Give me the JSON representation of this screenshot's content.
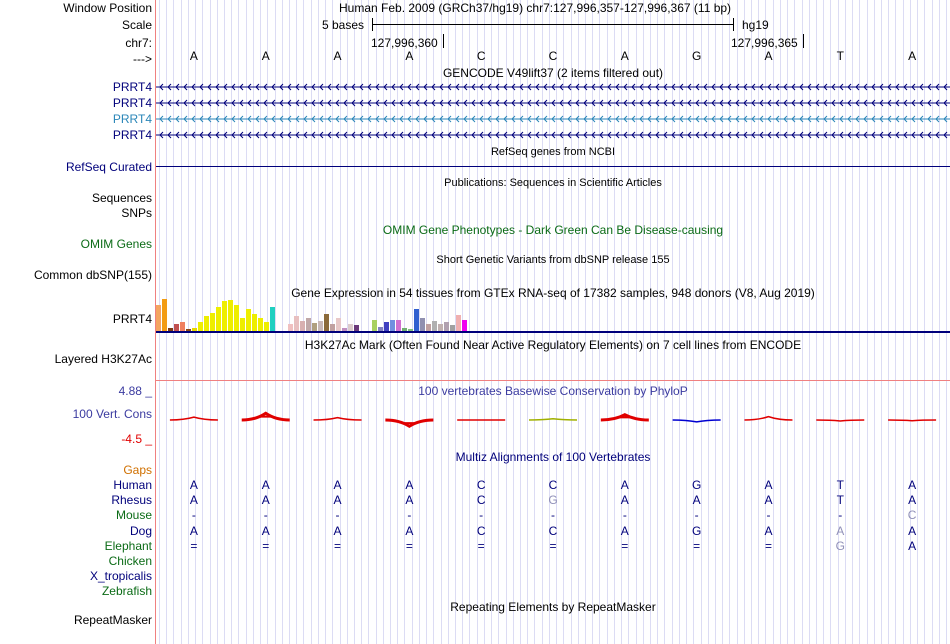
{
  "colors": {
    "label_navy": "#00007b",
    "label_gencode_light": "#2a86b8",
    "label_green": "#0b6b16",
    "label_orange": "#d07000",
    "label_blue": "#3b3ba0",
    "title_green": "#0b6b16",
    "title_blue": "#3b3ba0",
    "accent_red": "#e00000",
    "grid_line": "#dcdcf4",
    "divider": "#f08080"
  },
  "header": {
    "window_position_label": "Window Position",
    "window_position_value": "Human Feb. 2009 (GRCh37/hg19)   chr7:127,996,357-127,996,367 (11 bp)",
    "scale_label": "Scale",
    "scale_value": "5 bases",
    "assembly": "hg19",
    "chrom_label": "chr7:",
    "pos_left": "127,996,360",
    "pos_right": "127,996,365",
    "strand_label": "--->"
  },
  "sequence": [
    "A",
    "A",
    "A",
    "A",
    "C",
    "C",
    "A",
    "G",
    "A",
    "T",
    "A"
  ],
  "gencode": {
    "title": "GENCODE V49lift37 (2 items filtered out)",
    "genes": [
      {
        "label": "PRRT4",
        "color": "#00007b"
      },
      {
        "label": "PRRT4",
        "color": "#00007b"
      },
      {
        "label": "PRRT4",
        "color": "#2a86b8"
      },
      {
        "label": "PRRT4",
        "color": "#00007b"
      }
    ]
  },
  "refseq": {
    "title": "RefSeq genes from NCBI",
    "label": "RefSeq Curated"
  },
  "publications": {
    "title": "Publications: Sequences in Scientific Articles",
    "label_sequences": "Sequences",
    "label_snps": "SNPs"
  },
  "omim": {
    "title": "OMIM Gene Phenotypes - Dark Green Can Be Disease-causing",
    "label": "OMIM Genes"
  },
  "dbsnp": {
    "title": "Short Genetic Variants from dbSNP release 155",
    "label": "Common dbSNP(155)"
  },
  "gtex": {
    "title": "Gene Expression in 54 tissues from GTEx RNA-seq of 17382 samples, 948 donors (V8, Aug 2019)",
    "label": "PRRT4",
    "bars": [
      {
        "v": 0.8,
        "c": "#f4a460"
      },
      {
        "v": 0.97,
        "c": "#f39c12"
      },
      {
        "v": 0.08,
        "c": "#7b3a14"
      },
      {
        "v": 0.2,
        "c": "#c05050"
      },
      {
        "v": 0.27,
        "c": "#f08060"
      },
      {
        "v": 0.05,
        "c": "#8b4513"
      },
      {
        "v": 0.1,
        "c": "#e8d800"
      },
      {
        "v": 0.28,
        "c": "#eeee00"
      },
      {
        "v": 0.45,
        "c": "#eeee00"
      },
      {
        "v": 0.55,
        "c": "#eeee00"
      },
      {
        "v": 0.72,
        "c": "#eeee00"
      },
      {
        "v": 0.9,
        "c": "#eeee00"
      },
      {
        "v": 0.93,
        "c": "#eeee00"
      },
      {
        "v": 0.8,
        "c": "#eeee00"
      },
      {
        "v": 0.4,
        "c": "#eeee00"
      },
      {
        "v": 0.68,
        "c": "#eeee00"
      },
      {
        "v": 0.5,
        "c": "#eeee00"
      },
      {
        "v": 0.4,
        "c": "#eeee00"
      },
      {
        "v": 0.28,
        "c": "#eeee00"
      },
      {
        "v": 0.72,
        "c": "#20d0c0"
      },
      {
        "v": 0.0,
        "c": "#ffffff"
      },
      {
        "v": 0.0,
        "c": "#ffffff"
      },
      {
        "v": 0.22,
        "c": "#f0c0c0"
      },
      {
        "v": 0.45,
        "c": "#e8c0c0"
      },
      {
        "v": 0.3,
        "c": "#d8b0b0"
      },
      {
        "v": 0.38,
        "c": "#c0a8a8"
      },
      {
        "v": 0.25,
        "c": "#b0a080"
      },
      {
        "v": 0.3,
        "c": "#c8b8b8"
      },
      {
        "v": 0.52,
        "c": "#8b6a3a"
      },
      {
        "v": 0.22,
        "c": "#c0a0a0"
      },
      {
        "v": 0.4,
        "c": "#e8c8c8"
      },
      {
        "v": 0.1,
        "c": "#c090c0"
      },
      {
        "v": 0.22,
        "c": "#dccccc"
      },
      {
        "v": 0.18,
        "c": "#6a3a7a"
      },
      {
        "v": 0.0,
        "c": "#ffffff"
      },
      {
        "v": 0.0,
        "c": "#ffffff"
      },
      {
        "v": 0.32,
        "c": "#a8d060"
      },
      {
        "v": 0.12,
        "c": "#8080c0"
      },
      {
        "v": 0.28,
        "c": "#4040c0"
      },
      {
        "v": 0.32,
        "c": "#7090e0"
      },
      {
        "v": 0.32,
        "c": "#d070d0"
      },
      {
        "v": 0.1,
        "c": "#70b070"
      },
      {
        "v": 0.05,
        "c": "#80c080"
      },
      {
        "v": 0.68,
        "c": "#3060d0"
      },
      {
        "v": 0.4,
        "c": "#9090b0"
      },
      {
        "v": 0.22,
        "c": "#c0a0a0"
      },
      {
        "v": 0.3,
        "c": "#b0b0b0"
      },
      {
        "v": 0.22,
        "c": "#c0b0b0"
      },
      {
        "v": 0.28,
        "c": "#b0a0b0"
      },
      {
        "v": 0.18,
        "c": "#a0a0a0"
      },
      {
        "v": 0.48,
        "c": "#f0b0b0"
      },
      {
        "v": 0.32,
        "c": "#f000f0"
      },
      {
        "v": 0.0,
        "c": "#ffffff"
      },
      {
        "v": 0.0,
        "c": "#ffffff"
      }
    ]
  },
  "h3k27ac": {
    "title": "H3K27Ac Mark (Often Found Near Active Regulatory Elements) on 7 cell lines from ENCODE",
    "label": "Layered H3K27Ac"
  },
  "phylop": {
    "title": "100 vertebrates Basewise Conservation by PhyloP",
    "label": "100 Vert. Cons",
    "max_label": "4.88 _",
    "min_label": "-4.5 _",
    "values": [
      0.12,
      0.28,
      0.1,
      -0.26,
      0.0,
      0.05,
      0.22,
      -0.08,
      0.14,
      -0.04,
      -0.03
    ],
    "colors": [
      "#e00000",
      "#e00000",
      "#e00000",
      "#e00000",
      "#e00000",
      "#a0b000",
      "#e00000",
      "#0000d0",
      "#e00000",
      "#e00000",
      "#e00000"
    ]
  },
  "multiz": {
    "title": "Multiz Alignments of 100 Vertebrates",
    "gaps_label": "Gaps",
    "species": [
      {
        "name": "Human",
        "color": "#00007b",
        "bases": [
          "A",
          "A",
          "A",
          "A",
          "C",
          "C",
          "A",
          "G",
          "A",
          "T",
          "A"
        ]
      },
      {
        "name": "Rhesus",
        "color": "#00007b",
        "bases": [
          "A",
          "A",
          "A",
          "A",
          "C",
          "G",
          "A",
          "A",
          "A",
          "T",
          "A"
        ]
      },
      {
        "name": "Mouse",
        "color": "#0b6b16",
        "bases": [
          "-",
          "-",
          "-",
          "-",
          "-",
          "-",
          "-",
          "-",
          "-",
          "-",
          "C"
        ]
      },
      {
        "name": "Dog",
        "color": "#00007b",
        "bases": [
          "A",
          "A",
          "A",
          "A",
          "C",
          "C",
          "A",
          "G",
          "A",
          "A",
          "A"
        ]
      },
      {
        "name": "Elephant",
        "color": "#0b6b16",
        "bases": [
          "=",
          "=",
          "=",
          "=",
          "=",
          "=",
          "=",
          "=",
          "=",
          "G",
          "A"
        ]
      },
      {
        "name": "Chicken",
        "color": "#0b6b16",
        "bases": []
      },
      {
        "name": "X_tropicalis",
        "color": "#00007b",
        "bases": []
      },
      {
        "name": "Zebrafish",
        "color": "#0b6b16",
        "bases": []
      }
    ],
    "highlight": [
      [
        false,
        false,
        false,
        false,
        false,
        false,
        false,
        false,
        false,
        false,
        false
      ],
      [
        false,
        false,
        false,
        false,
        false,
        true,
        false,
        false,
        false,
        false,
        false
      ],
      [
        false,
        false,
        false,
        false,
        false,
        false,
        false,
        false,
        false,
        false,
        true
      ],
      [
        false,
        false,
        false,
        false,
        false,
        false,
        false,
        false,
        false,
        true,
        false
      ],
      [
        false,
        false,
        false,
        false,
        false,
        false,
        false,
        false,
        false,
        true,
        false
      ]
    ]
  },
  "repeatmasker": {
    "title": "Repeating Elements by RepeatMasker",
    "label": "RepeatMasker"
  }
}
